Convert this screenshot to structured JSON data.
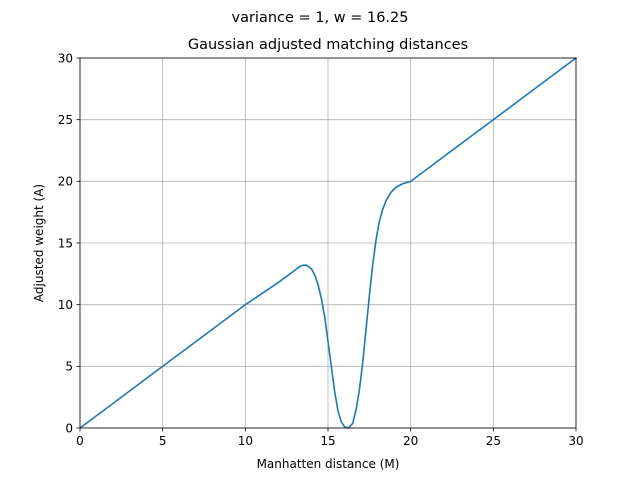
{
  "suptitle": "variance = 1, w = 16.25",
  "chart_data": {
    "type": "line",
    "title": "Gaussian adjusted matching distances",
    "xlabel": "Manhatten distance (M)",
    "ylabel": "Adjusted weight (A)",
    "xlim": [
      0,
      30
    ],
    "ylim": [
      0,
      30
    ],
    "xticks": [
      0,
      5,
      10,
      15,
      20,
      25,
      30
    ],
    "yticks": [
      0,
      5,
      10,
      15,
      20,
      25,
      30
    ],
    "xtick_labels": [
      "0",
      "5",
      "10",
      "15",
      "20",
      "25",
      "30"
    ],
    "ytick_labels": [
      "0",
      "5",
      "10",
      "15",
      "20",
      "25",
      "30"
    ],
    "grid": true,
    "legend": "none",
    "series": [
      {
        "color": "#1f77b4",
        "x": [
          0,
          2,
          4,
          6,
          8,
          10,
          11,
          12,
          12.5,
          13,
          13.3,
          13.5,
          13.7,
          14,
          14.2,
          14.4,
          14.6,
          14.8,
          15,
          15.2,
          15.4,
          15.6,
          15.8,
          16,
          16.25,
          16.5,
          16.7,
          16.9,
          17.1,
          17.3,
          17.5,
          17.7,
          17.9,
          18.1,
          18.3,
          18.5,
          18.8,
          19.1,
          19.5,
          20,
          21,
          22,
          24,
          26,
          28,
          30
        ],
        "y": [
          0,
          2,
          4,
          6,
          8,
          10,
          10.9,
          11.8,
          12.3,
          12.8,
          13.1,
          13.2,
          13.2,
          12.9,
          12.4,
          11.6,
          10.5,
          9.0,
          7.0,
          5.0,
          3.0,
          1.4,
          0.5,
          0.1,
          0.0,
          0.4,
          1.5,
          3.1,
          5.3,
          8.0,
          10.7,
          13.2,
          15.2,
          16.7,
          17.7,
          18.4,
          19.1,
          19.5,
          19.8,
          20.0,
          21.0,
          22.0,
          24.0,
          26.0,
          28.0,
          30.0
        ]
      }
    ]
  }
}
